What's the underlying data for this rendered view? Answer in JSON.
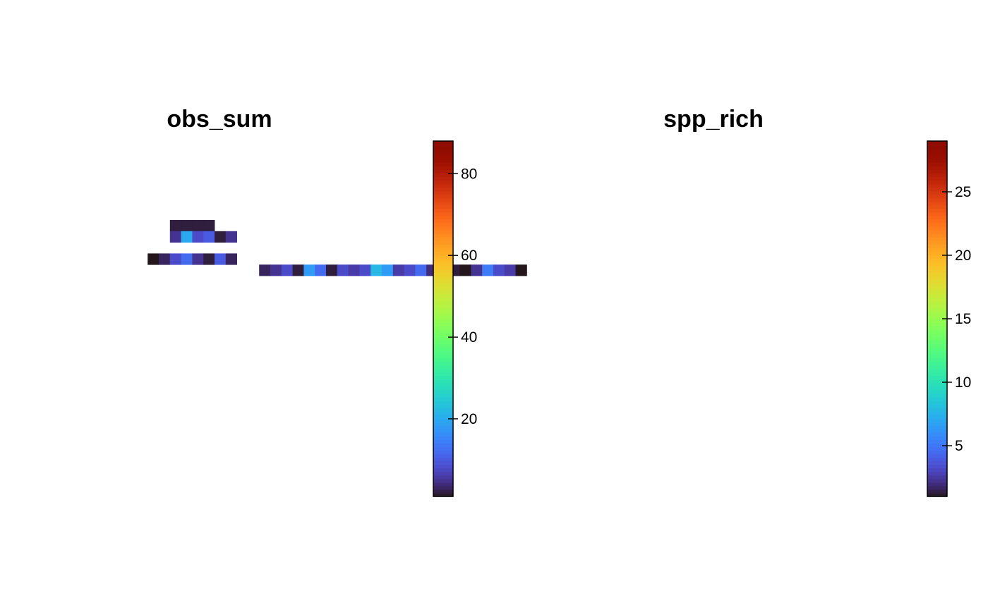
{
  "chart_data": [
    {
      "type": "heatmap",
      "title": "obs_sum",
      "colormap": "turbo",
      "legend": "right",
      "zlim": [
        1,
        88
      ],
      "legend_ticks": [
        20,
        40,
        60,
        80
      ],
      "grid": false,
      "cells": [
        [
          11,
          5,
          2,
          "#3e4ab1"
        ],
        [
          12,
          5,
          2,
          "#2a1c4a"
        ],
        [
          13,
          5,
          2,
          "#2a1c4a"
        ],
        [
          14,
          5,
          2,
          "#3e4ab1"
        ],
        [
          11,
          6,
          5,
          "#3e4ab1"
        ],
        [
          12,
          6,
          20,
          "#1fc1da"
        ],
        [
          13,
          6,
          8,
          "#4a6fe0"
        ],
        [
          14,
          6,
          10,
          "#3f8ff7"
        ],
        [
          15,
          6,
          2,
          "#2a1c4a"
        ],
        [
          16,
          6,
          5,
          "#3e4ab1"
        ],
        [
          9,
          8,
          1,
          "#30123b"
        ],
        [
          10,
          8,
          3,
          "#30123b"
        ],
        [
          11,
          8,
          8,
          "#4a6fe0"
        ],
        [
          12,
          8,
          12,
          "#3f8ff7"
        ],
        [
          13,
          8,
          5,
          "#3e4ab1"
        ],
        [
          14,
          8,
          2,
          "#2a1c4a"
        ],
        [
          15,
          8,
          10,
          "#3f8ff7"
        ],
        [
          16,
          8,
          3,
          "#30123b"
        ],
        [
          19,
          9,
          3,
          "#30123b"
        ],
        [
          20,
          9,
          5,
          "#3e4ab1"
        ],
        [
          21,
          9,
          8,
          "#4a6fe0"
        ],
        [
          22,
          9,
          2,
          "#2a1c4a"
        ],
        [
          23,
          9,
          18,
          "#1fc1da"
        ],
        [
          24,
          9,
          12,
          "#3f8ff7"
        ],
        [
          25,
          9,
          2,
          "#2a1c4a"
        ],
        [
          26,
          9,
          8,
          "#4a6fe0"
        ],
        [
          27,
          9,
          6,
          "#3e4ab1"
        ],
        [
          28,
          9,
          8,
          "#4a6fe0"
        ],
        [
          29,
          9,
          22,
          "#1fc1da"
        ],
        [
          30,
          9,
          18,
          "#1fc1da"
        ],
        [
          31,
          9,
          6,
          "#3e4ab1"
        ],
        [
          32,
          9,
          8,
          "#4a6fe0"
        ],
        [
          33,
          9,
          12,
          "#3f8ff7"
        ],
        [
          34,
          9,
          4,
          "#30123b"
        ],
        [
          35,
          9,
          1,
          "#30123b"
        ],
        [
          36,
          9,
          2,
          "#2a1c4a"
        ],
        [
          37,
          9,
          1,
          "#30123b"
        ],
        [
          38,
          9,
          5,
          "#3e4ab1"
        ],
        [
          39,
          9,
          14,
          "#3f8ff7"
        ],
        [
          40,
          9,
          8,
          "#4a6fe0"
        ],
        [
          41,
          9,
          6,
          "#3e4ab1"
        ],
        [
          42,
          9,
          1,
          "#30123b"
        ]
      ]
    },
    {
      "type": "heatmap",
      "title": "spp_rich",
      "colormap": "turbo",
      "legend": "right",
      "zlim": [
        1,
        29
      ],
      "legend_ticks": [
        5,
        10,
        15,
        20,
        25
      ],
      "grid": false
    }
  ]
}
